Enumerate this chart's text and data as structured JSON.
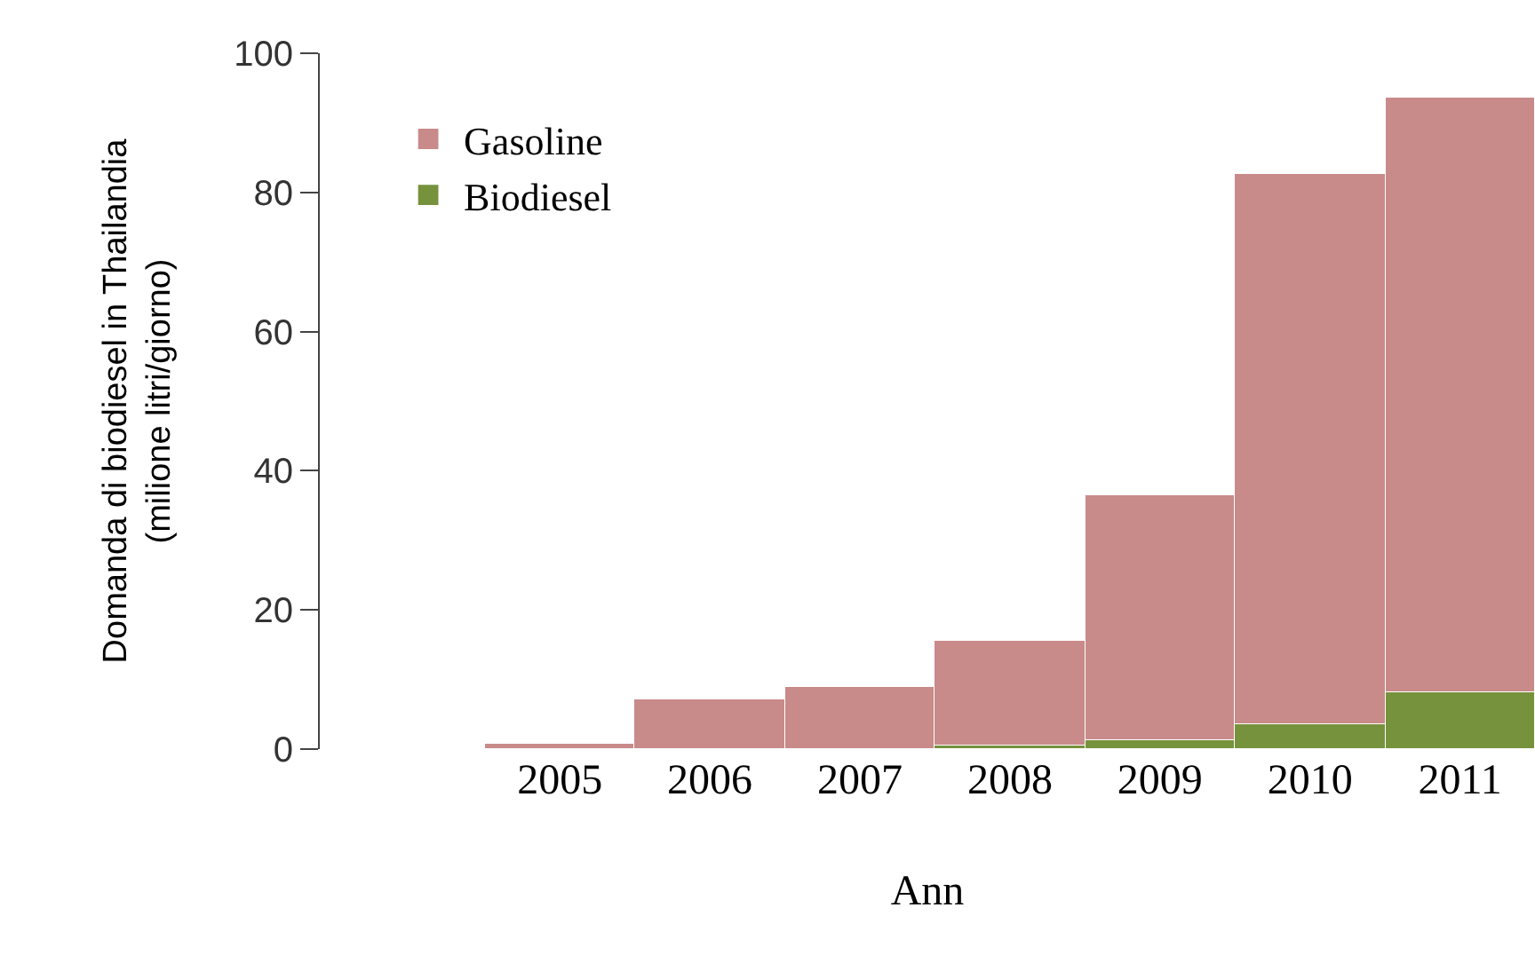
{
  "chart_data": {
    "type": "bar",
    "stacked": true,
    "xlabel": "Ann",
    "ylabel": "Domanda di biodiesel in Thailandia\n(milione litri/giorno)",
    "categories": [
      "2005",
      "2006",
      "2007",
      "2008",
      "2009",
      "2010",
      "2011"
    ],
    "series": [
      {
        "name": "Biodiesel",
        "color": "#76923c",
        "values": [
          0,
          0,
          0,
          0.5,
          1.3,
          3.6,
          8.2
        ]
      },
      {
        "name": "Gasoline",
        "color": "#c98a8a",
        "values": [
          0.8,
          7.2,
          9.0,
          15.1,
          35.3,
          79.1,
          85.4
        ]
      }
    ],
    "ylim": [
      0,
      100
    ],
    "yticks": [
      0,
      20,
      40,
      60,
      80,
      100
    ],
    "grid": false,
    "legend": "top left"
  }
}
